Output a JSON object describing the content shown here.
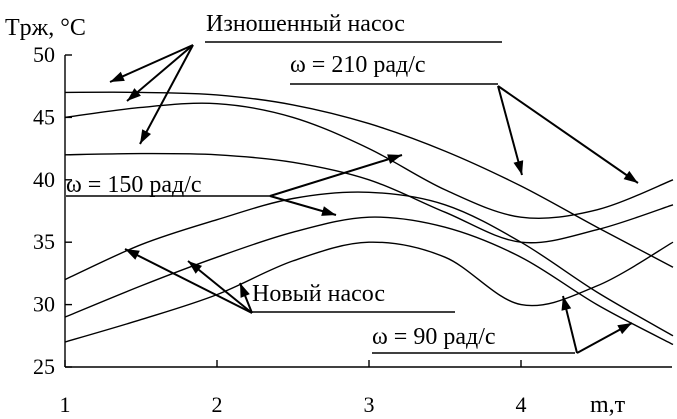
{
  "chart_data": {
    "type": "line",
    "ylabel": "Tрж, °C",
    "xlabel": "m,т",
    "xlim": [
      1,
      5
    ],
    "ylim": [
      25,
      50
    ],
    "xticks": [
      1,
      2,
      3,
      4
    ],
    "yticks": [
      25,
      30,
      35,
      40,
      45,
      50
    ],
    "grid": false,
    "legend": "none",
    "groups": [
      {
        "label": "Изношенный насос",
        "series": [
          {
            "omega": "210",
            "x": [
              1,
              1.5,
              2,
              2.5,
              3,
              3.5,
              4,
              4.5,
              5
            ],
            "y": [
              47,
              47,
              46.8,
              46,
              44.5,
              42.3,
              39.5,
              36.2,
              33
            ]
          },
          {
            "omega": "150",
            "x": [
              1,
              1.5,
              2,
              2.5,
              3,
              3.5,
              4,
              4.5,
              5
            ],
            "y": [
              45,
              45.8,
              46.1,
              45,
              42.5,
              39.2,
              37,
              37.6,
              40
            ]
          },
          {
            "omega": "90",
            "x": [
              1,
              1.5,
              2,
              2.5,
              3,
              3.5,
              4,
              4.5,
              5
            ],
            "y": [
              42,
              42.1,
              42,
              41.4,
              40,
              37.4,
              35,
              36,
              38
            ]
          }
        ]
      },
      {
        "label": "Новый насос",
        "series": [
          {
            "omega": "210",
            "x": [
              1,
              1.5,
              2,
              2.5,
              3,
              3.5,
              4,
              4.5,
              5
            ],
            "y": [
              32,
              34.8,
              36.8,
              38.5,
              39,
              38,
              35,
              31,
              27.5
            ]
          },
          {
            "omega": "150",
            "x": [
              1,
              1.5,
              2,
              2.5,
              3,
              3.5,
              4,
              4.5,
              5
            ],
            "y": [
              29,
              31.5,
              33.8,
              35.8,
              37,
              36.2,
              33.8,
              30,
              26.8
            ]
          },
          {
            "omega": "90",
            "x": [
              1,
              1.5,
              2,
              2.5,
              3,
              3.5,
              4,
              4.5,
              5
            ],
            "y": [
              27,
              28.8,
              30.8,
              33.5,
              35,
              33.8,
              30,
              31.5,
              35
            ]
          }
        ]
      }
    ],
    "annotations": {
      "worn": "Изношенный насос",
      "new": "Новый насос",
      "w210": "ω = 210 рад/с",
      "w150": "ω = 150 рад/с",
      "w90": "ω = 90 рад/с"
    }
  }
}
